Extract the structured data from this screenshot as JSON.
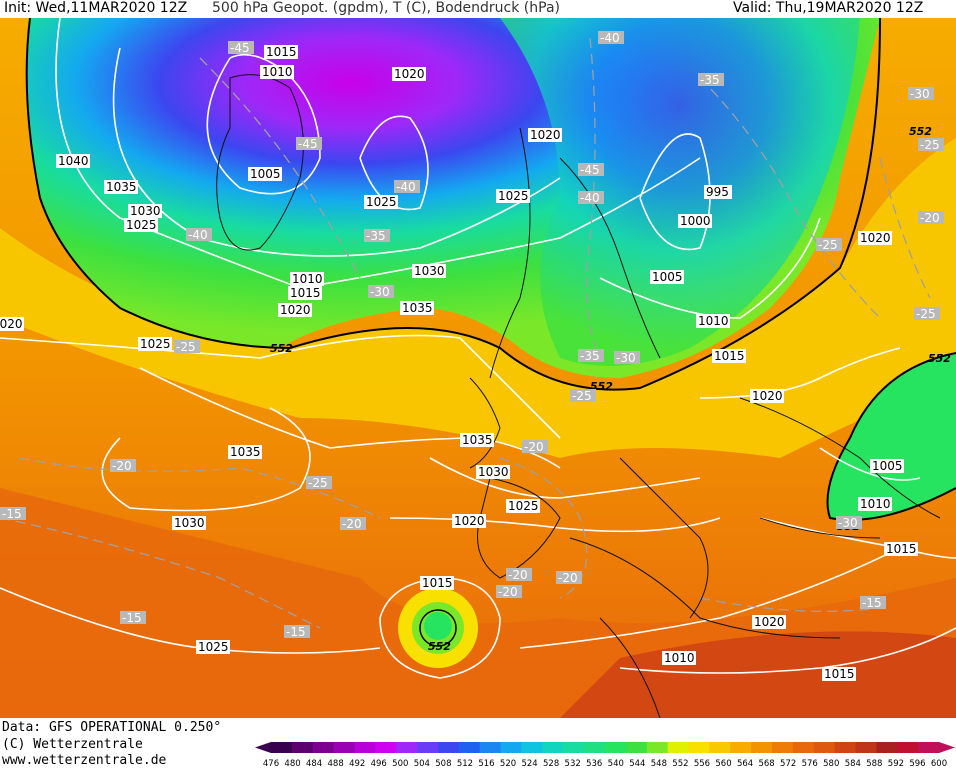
{
  "header": {
    "init": "Init: Wed,11MAR2020 12Z",
    "title": "500 hPa Geopot. (gpdm), T (C), Bodendruck (hPa)",
    "valid": "Valid: Thu,19MAR2020 12Z"
  },
  "footer": {
    "data_line": "Data: GFS OPERATIONAL 0.250°",
    "copyright": "(C) Wetterzentrale",
    "url": "www.wetterzentrale.de"
  },
  "colorbar": {
    "ticks": [
      "476",
      "480",
      "484",
      "488",
      "492",
      "496",
      "500",
      "504",
      "508",
      "512",
      "516",
      "520",
      "524",
      "528",
      "532",
      "536",
      "540",
      "544",
      "548",
      "552",
      "556",
      "560",
      "564",
      "568",
      "572",
      "576",
      "580",
      "584",
      "588",
      "592",
      "596",
      "600"
    ],
    "colors": [
      "#3a0050",
      "#5c006e",
      "#7c0090",
      "#9a00b4",
      "#b800d8",
      "#d000f0",
      "#9e28f8",
      "#6a3cf8",
      "#3c46f0",
      "#2060f0",
      "#1a86f2",
      "#14a8f0",
      "#10c4e0",
      "#12d4c0",
      "#18dca0",
      "#1ee080",
      "#26e460",
      "#3ce040",
      "#7ae828",
      "#e0f000",
      "#f8e000",
      "#f8c800",
      "#f6ac00",
      "#f29400",
      "#ee7c06",
      "#e8680c",
      "#de5810",
      "#d04414",
      "#c03418",
      "#aa2020",
      "#c01030",
      "#c0105a"
    ]
  },
  "map_labels": {
    "pressure": [
      "1040",
      "1035",
      "1030",
      "1025",
      "1015",
      "1010",
      "1005",
      "1020",
      "1025",
      "1020",
      "1025",
      "1030",
      "1010",
      "1015",
      "1020",
      "1035",
      "1025",
      "1020",
      "995",
      "1000",
      "1005",
      "1010",
      "1015",
      "1020",
      "1020",
      "1005",
      "1010",
      "1015",
      "1035",
      "1030",
      "1035",
      "1030",
      "1025",
      "1020",
      "1015",
      "1025",
      "1020",
      "1010",
      "1015"
    ],
    "temperature": [
      "-45",
      "-45",
      "-40",
      "-40",
      "-35",
      "-30",
      "-45",
      "-40",
      "-40",
      "-35",
      "-30",
      "-25",
      "-25",
      "-20",
      "-25",
      "-30",
      "-25",
      "-35",
      "-30",
      "-25",
      "-20",
      "-25",
      "-20",
      "-20",
      "-20",
      "-20",
      "-20",
      "-15",
      "-15",
      "-15",
      "-15"
    ],
    "geopotential": [
      "552",
      "552",
      "552",
      "552",
      "552",
      "552"
    ]
  }
}
